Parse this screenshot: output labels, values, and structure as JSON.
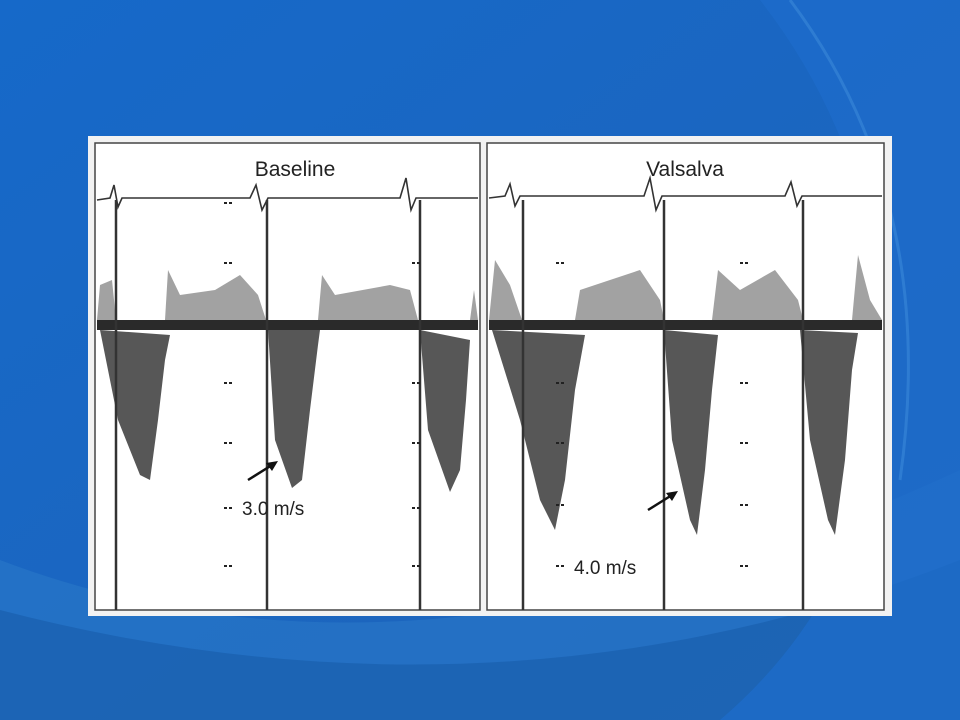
{
  "panels": [
    {
      "title": "Baseline",
      "annotation": "3.0 m/s"
    },
    {
      "title": "Valsalva",
      "annotation": "4.0 m/s"
    }
  ]
}
